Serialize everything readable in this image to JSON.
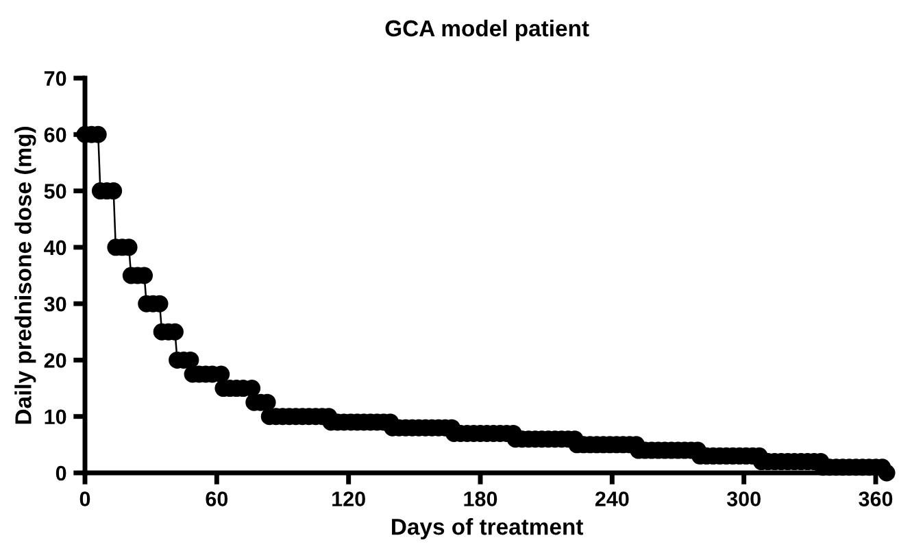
{
  "chart_data": {
    "type": "line",
    "title": "GCA model patient",
    "xlabel": "Days of treatment",
    "ylabel": "Daily prednisone dose (mg)",
    "xlim": [
      0,
      366
    ],
    "xticks": [
      0,
      60,
      120,
      180,
      240,
      300,
      360
    ],
    "ylim": [
      0,
      70
    ],
    "yticks": [
      0,
      10,
      20,
      30,
      40,
      50,
      60,
      70
    ],
    "grid": false,
    "legend": false,
    "marker": "circle",
    "line_style": "solid",
    "series": [
      {
        "color": "#000000",
        "x": [
          0,
          3,
          6,
          7,
          10,
          13,
          14,
          17,
          20,
          21,
          24,
          27,
          28,
          31,
          34,
          35,
          38,
          41,
          42,
          45,
          48,
          49,
          52,
          55,
          58,
          62,
          63,
          66,
          69,
          72,
          76,
          77,
          80,
          83,
          84,
          87,
          90,
          93,
          96,
          99,
          102,
          105,
          108,
          111,
          112,
          115,
          118,
          121,
          124,
          127,
          130,
          133,
          136,
          139,
          140,
          143,
          146,
          149,
          152,
          155,
          158,
          161,
          164,
          167,
          168,
          171,
          174,
          177,
          180,
          183,
          186,
          189,
          192,
          195,
          196,
          199,
          202,
          205,
          208,
          211,
          214,
          217,
          220,
          223,
          224,
          227,
          230,
          233,
          236,
          239,
          242,
          245,
          248,
          251,
          252,
          255,
          258,
          261,
          264,
          267,
          270,
          273,
          276,
          279,
          280,
          283,
          286,
          289,
          292,
          295,
          298,
          301,
          304,
          307,
          308,
          311,
          314,
          317,
          320,
          323,
          326,
          329,
          332,
          335,
          336,
          339,
          342,
          345,
          348,
          351,
          354,
          357,
          360,
          363,
          365
        ],
        "values": [
          60,
          60,
          60,
          50,
          50,
          50,
          40,
          40,
          40,
          35,
          35,
          35,
          30,
          30,
          30,
          25,
          25,
          25,
          20,
          20,
          20,
          17.5,
          17.5,
          17.5,
          17.5,
          17.5,
          15,
          15,
          15,
          15,
          15,
          12.5,
          12.5,
          12.5,
          10,
          10,
          10,
          10,
          10,
          10,
          10,
          10,
          10,
          10,
          9,
          9,
          9,
          9,
          9,
          9,
          9,
          9,
          9,
          9,
          8,
          8,
          8,
          8,
          8,
          8,
          8,
          8,
          8,
          8,
          7,
          7,
          7,
          7,
          7,
          7,
          7,
          7,
          7,
          7,
          6,
          6,
          6,
          6,
          6,
          6,
          6,
          6,
          6,
          6,
          5,
          5,
          5,
          5,
          5,
          5,
          5,
          5,
          5,
          5,
          4,
          4,
          4,
          4,
          4,
          4,
          4,
          4,
          4,
          4,
          3,
          3,
          3,
          3,
          3,
          3,
          3,
          3,
          3,
          3,
          2,
          2,
          2,
          2,
          2,
          2,
          2,
          2,
          2,
          2,
          1,
          1,
          1,
          1,
          1,
          1,
          1,
          1,
          1,
          1,
          0
        ]
      }
    ]
  }
}
